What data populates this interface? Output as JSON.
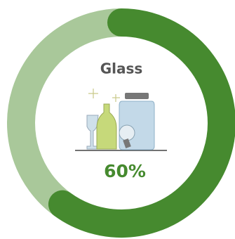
{
  "chart_data": {
    "type": "donut",
    "title": "Glass",
    "values": [
      60,
      40
    ],
    "value_labels": [
      "60%",
      null
    ],
    "colors": [
      "#468a2f",
      "#a9c89a"
    ]
  }
}
